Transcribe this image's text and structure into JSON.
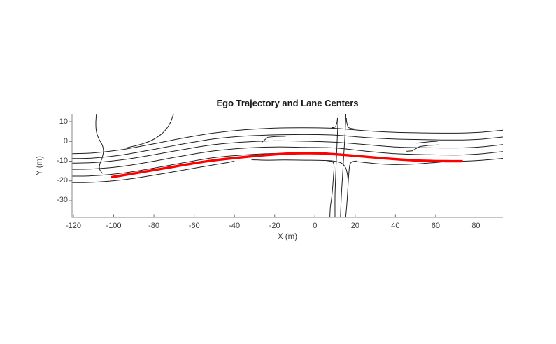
{
  "figure": {
    "background": "#ffffff"
  },
  "chart_data": {
    "type": "line",
    "title": "Ego Trajectory and Lane Centers",
    "xlabel": "X (m)",
    "ylabel": "Y (m)",
    "xlim": [
      -120.7,
      93.4
    ],
    "ylim": [
      -38.5,
      13.9
    ],
    "xticks": [
      -120,
      -100,
      -80,
      -60,
      -40,
      -20,
      0,
      20,
      40,
      60,
      80
    ],
    "yticks": [
      10,
      0,
      -10,
      -20,
      -30
    ],
    "grid": false,
    "legend": null,
    "box": false,
    "colors": {
      "lane_line": "#1f1f1f",
      "ego": "#ff0000",
      "spine": "#8a8a8a",
      "tick": "#6f6f6f",
      "tick_label": "#3c3c3c",
      "title": "#1b1b1b"
    },
    "sample_x": [
      -120.7,
      -110,
      -95,
      -80,
      -65,
      -50,
      -35,
      -20,
      -5,
      10,
      25,
      40,
      55,
      70,
      82,
      93.4
    ],
    "lanes": [
      {
        "name": "lane-center-1",
        "y": [
          -6.2,
          -5.8,
          -4.0,
          -1.2,
          1.8,
          4.3,
          5.9,
          6.7,
          6.9,
          6.6,
          5.4,
          4.6,
          4.3,
          4.2,
          4.6,
          5.7
        ]
      },
      {
        "name": "lane-center-2",
        "y": [
          -8.7,
          -8.4,
          -6.7,
          -4.0,
          -1.2,
          1.3,
          2.7,
          3.3,
          3.5,
          3.2,
          2.0,
          1.2,
          0.9,
          0.7,
          1.1,
          2.2
        ]
      },
      {
        "name": "lane-center-3",
        "y": [
          -11.0,
          -10.7,
          -9.2,
          -6.7,
          -4.0,
          -1.6,
          -0.3,
          0.3,
          0.1,
          -0.4,
          -1.6,
          -2.8,
          -3.2,
          -3.3,
          -2.8,
          -1.6
        ]
      },
      {
        "name": "lane-center-4",
        "y": [
          -14.1,
          -13.9,
          -12.5,
          -10.0,
          -7.2,
          -4.8,
          -3.4,
          -2.8,
          -3.0,
          -3.3,
          -4.9,
          -6.2,
          -6.7,
          -6.9,
          -6.3,
          -5.1
        ]
      },
      {
        "name": "lane-center-5",
        "y": [
          -17.6,
          -17.4,
          -16.0,
          -13.5,
          -10.7,
          -8.2,
          -6.8,
          -6.1,
          -6.2,
          -6.6,
          -8.0,
          -9.2,
          -9.8,
          -10.1,
          -9.6,
          -8.6
        ]
      }
    ],
    "extra_lines": [
      {
        "name": "lane-center-6-west",
        "smooth": true,
        "points": [
          [
            -120.7,
            -20.9
          ],
          [
            -110,
            -20.7
          ],
          [
            -95,
            -19.4
          ],
          [
            -80,
            -17.1
          ],
          [
            -68,
            -15.0
          ],
          [
            -58,
            -13.2
          ],
          [
            -50,
            -11.8
          ],
          [
            -44,
            -10.8
          ],
          [
            -40,
            -9.9
          ]
        ]
      },
      {
        "name": "lane-stub-below-ego",
        "smooth": true,
        "points": [
          [
            -31.5,
            -9.3
          ],
          [
            -24,
            -9.5
          ],
          [
            -15,
            -9.4
          ],
          [
            -5,
            -9.5
          ],
          [
            3,
            -9.6
          ],
          [
            9,
            -9.9
          ],
          [
            13,
            -10.9
          ],
          [
            15.2,
            -13.2
          ],
          [
            16.1,
            -16.5
          ],
          [
            16.5,
            -20
          ]
        ]
      },
      {
        "name": "merge-lane-east",
        "smooth": true,
        "points": [
          [
            21,
            -10.2
          ],
          [
            27,
            -10.9
          ],
          [
            34,
            -11.5
          ],
          [
            42,
            -11.7
          ],
          [
            50,
            -11.4
          ],
          [
            57,
            -10.9
          ],
          [
            63,
            -10.4
          ]
        ]
      },
      {
        "name": "side-road-west",
        "smooth": true,
        "points": [
          [
            -108.6,
            13.9
          ],
          [
            -108.9,
            9
          ],
          [
            -108.5,
            4.5
          ],
          [
            -107.2,
            1
          ],
          [
            -105.6,
            -2
          ],
          [
            -105.1,
            -5
          ],
          [
            -105.8,
            -8.5
          ],
          [
            -106.9,
            -11.5
          ],
          [
            -107.0,
            -14
          ],
          [
            -105.6,
            -16.3
          ]
        ]
      },
      {
        "name": "ramp-northwest",
        "smooth": true,
        "points": [
          [
            -70.3,
            13.9
          ],
          [
            -71.7,
            9.8
          ],
          [
            -73.9,
            6.2
          ],
          [
            -76.9,
            3.2
          ],
          [
            -80.6,
            0.8
          ],
          [
            -84.7,
            -0.9
          ],
          [
            -89.2,
            -2.2
          ],
          [
            -94,
            -3.3
          ]
        ]
      },
      {
        "name": "cross-road-line-1",
        "smooth": true,
        "points": [
          [
            11.6,
            13.9
          ],
          [
            11.2,
            4
          ],
          [
            10.8,
            -6
          ],
          [
            10.3,
            -18
          ],
          [
            10.0,
            -28
          ],
          [
            10.0,
            -38.5
          ]
        ]
      },
      {
        "name": "cross-road-line-2",
        "smooth": true,
        "points": [
          [
            15.4,
            13.9
          ],
          [
            15.0,
            4
          ],
          [
            14.4,
            -6
          ],
          [
            13.7,
            -18
          ],
          [
            13.1,
            -28
          ],
          [
            12.7,
            -38.5
          ]
        ]
      },
      {
        "name": "cross-road-line-3",
        "smooth": true,
        "points": [
          [
            6.2,
            -9.8
          ],
          [
            8.7,
            -10.3
          ],
          [
            9.5,
            -12.5
          ],
          [
            9.2,
            -18
          ],
          [
            8.5,
            -27
          ],
          [
            7.7,
            -33
          ],
          [
            7.4,
            -38.5
          ]
        ]
      },
      {
        "name": "cross-road-line-4",
        "smooth": true,
        "points": [
          [
            20.8,
            -9.9
          ],
          [
            18.2,
            -10.5
          ],
          [
            17.2,
            -12.6
          ],
          [
            16.6,
            -20
          ],
          [
            16.0,
            -30
          ],
          [
            15.3,
            -38.5
          ]
        ]
      },
      {
        "name": "flare-top-left",
        "smooth": true,
        "points": [
          [
            8.2,
            6.95
          ],
          [
            10.1,
            7.3
          ],
          [
            10.9,
            9.3
          ],
          [
            11.2,
            11.8
          ]
        ]
      },
      {
        "name": "flare-top-right",
        "smooth": true,
        "points": [
          [
            19.6,
            6.3
          ],
          [
            16.8,
            7.0
          ],
          [
            15.9,
            9.3
          ],
          [
            15.6,
            11.8
          ]
        ]
      },
      {
        "name": "lane-change-jog-west",
        "smooth": false,
        "points": [
          [
            -26.5,
            -0.55
          ],
          [
            -23.4,
            2.1
          ],
          [
            -19.5,
            2.5
          ],
          [
            -14.5,
            2.6
          ]
        ]
      },
      {
        "name": "lane-change-jog-east-a",
        "smooth": false,
        "points": [
          [
            45.5,
            -5.0
          ],
          [
            48.3,
            -4.8
          ],
          [
            52,
            -2.6
          ],
          [
            56.5,
            -2.0
          ],
          [
            61.5,
            -1.8
          ]
        ]
      },
      {
        "name": "lane-change-jog-east-b",
        "smooth": false,
        "points": [
          [
            50.5,
            -0.9
          ],
          [
            53.5,
            -0.5
          ],
          [
            58,
            -0.1
          ],
          [
            61,
            0.1
          ]
        ]
      }
    ],
    "series": [
      {
        "name": "ego-trajectory",
        "color": "#ff0000",
        "line_width": 3.4,
        "points": [
          [
            -101,
            -18.1
          ],
          [
            -95,
            -17.1
          ],
          [
            -88,
            -15.9
          ],
          [
            -80,
            -14.5
          ],
          [
            -72,
            -13.1
          ],
          [
            -64,
            -11.7
          ],
          [
            -56,
            -10.4
          ],
          [
            -48,
            -9.3
          ],
          [
            -40,
            -8.4
          ],
          [
            -32,
            -7.6
          ],
          [
            -24,
            -6.9
          ],
          [
            -16,
            -6.3
          ],
          [
            -9,
            -6.0
          ],
          [
            -3,
            -5.95
          ],
          [
            3,
            -6.05
          ],
          [
            10,
            -6.5
          ],
          [
            18,
            -7.1
          ],
          [
            26,
            -7.8
          ],
          [
            34,
            -8.5
          ],
          [
            42,
            -9.1
          ],
          [
            50,
            -9.6
          ],
          [
            58,
            -9.9
          ],
          [
            65,
            -10.0
          ],
          [
            73,
            -10.05
          ]
        ]
      }
    ]
  }
}
